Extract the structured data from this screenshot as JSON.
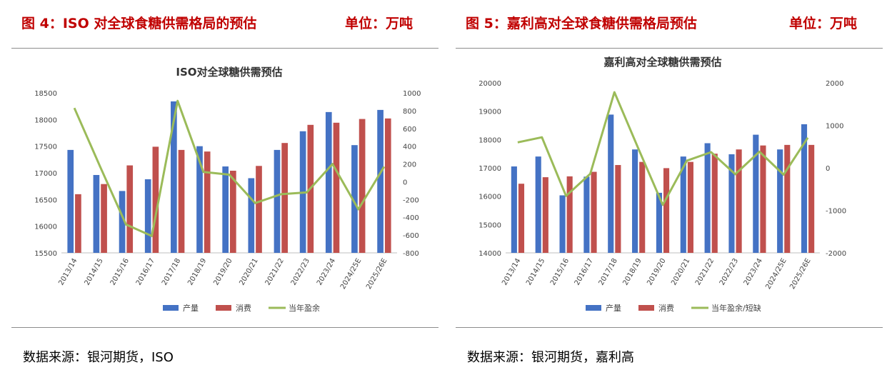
{
  "figures": [
    {
      "figure_title": "图 4：ISO 对全球食糖供需格局的预估",
      "unit": "单位：万吨",
      "source": "数据来源：银河期货，ISO",
      "colors": {
        "production": "#4472c4",
        "consumption": "#c0504d",
        "surplus": "#9bbb59"
      },
      "chart_data": {
        "type": "bar",
        "title": "ISO对全球糖供需预估",
        "categories": [
          "2013/14",
          "2014/15",
          "2015/16",
          "2016/17",
          "2017/18",
          "2018/19",
          "2019/20",
          "2020/21",
          "2021/22",
          "2022/23",
          "2023/24",
          "2024/25E",
          "2025/26E"
        ],
        "series": [
          {
            "name": "产量",
            "type": "bar",
            "axis": "left",
            "values": [
              17430,
              16960,
              16660,
              16880,
              18340,
              17500,
              17120,
              16900,
              17430,
              17780,
              18140,
              17520,
              18180
            ]
          },
          {
            "name": "消费",
            "type": "bar",
            "axis": "left",
            "values": [
              16600,
              16790,
              17140,
              17490,
              17430,
              17400,
              17040,
              17130,
              17560,
              17900,
              17940,
              18010,
              18020
            ]
          },
          {
            "name": "当年盈余",
            "type": "line",
            "axis": "right",
            "values": [
              830,
              170,
              -480,
              -610,
              910,
              110,
              80,
              -240,
              -140,
              -120,
              200,
              -310,
              170
            ]
          }
        ],
        "ylim_left": [
          15500,
          18500
        ],
        "yticks_left": [
          "15500",
          "16000",
          "16500",
          "17000",
          "17500",
          "18000",
          "18500"
        ],
        "ylim_right": [
          -800,
          1000
        ],
        "yticks_right": [
          "-800",
          "-600",
          "-400",
          "-200",
          "0",
          "200",
          "400",
          "600",
          "800",
          "1000"
        ],
        "legend": [
          "产量",
          "消费",
          "当年盈余"
        ],
        "legend_position": "bottom",
        "grid": false
      }
    },
    {
      "figure_title": "图 5：嘉利高对全球食糖供需格局预估",
      "unit": "单位：万吨",
      "source": "数据来源：银河期货，嘉利高",
      "colors": {
        "production": "#4472c4",
        "consumption": "#c0504d",
        "surplus": "#9bbb59"
      },
      "chart_data": {
        "type": "bar",
        "title": "嘉利高对全球糖供需预估",
        "categories": [
          "2013/14",
          "2014/15",
          "2015/16",
          "2016/17",
          "2017/18",
          "2018/19",
          "2019/20",
          "2020/21",
          "2021/22",
          "2022/23",
          "2023/24",
          "2024/25E",
          "2025/26E"
        ],
        "series": [
          {
            "name": "产量",
            "type": "bar",
            "axis": "left",
            "values": [
              17050,
              17400,
              16030,
              16690,
              18880,
              17650,
              16120,
              17400,
              17870,
              17480,
              18170,
              17650,
              18540
            ]
          },
          {
            "name": "消费",
            "type": "bar",
            "axis": "left",
            "values": [
              16440,
              16670,
              16700,
              16860,
              17100,
              17210,
              16990,
              17210,
              17500,
              17650,
              17790,
              17810,
              17810
            ]
          },
          {
            "name": "当年盈余/短缺",
            "type": "line",
            "axis": "right",
            "values": [
              600,
              720,
              -660,
              -140,
              1780,
              440,
              -870,
              170,
              370,
              -150,
              380,
              -160,
              710
            ]
          }
        ],
        "ylim_left": [
          14000,
          20000
        ],
        "yticks_left": [
          "14000",
          "15000",
          "16000",
          "17000",
          "18000",
          "19000",
          "20000"
        ],
        "ylim_right": [
          -2000,
          2000
        ],
        "yticks_right": [
          "-2000",
          "-1000",
          "0",
          "1000",
          "2000"
        ],
        "legend": [
          "产量",
          "消费",
          "当年盈余/短缺"
        ],
        "legend_position": "bottom",
        "grid": false
      }
    }
  ]
}
